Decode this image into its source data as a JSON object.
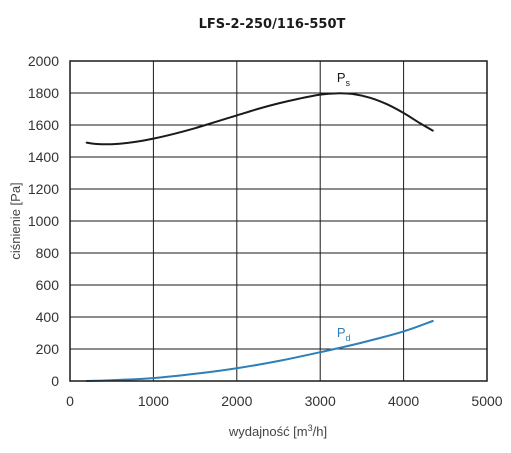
{
  "chart_data": {
    "type": "line",
    "title": "LFS-2-250/116-550T",
    "xlabel": {
      "prefix": "wydajność [m",
      "sup": "3",
      "suffix": "/h]"
    },
    "ylabel": "ciśnienie [Pa]",
    "xlim": [
      0,
      5000
    ],
    "ylim": [
      0,
      2000
    ],
    "x_ticks": [
      0,
      1000,
      2000,
      3000,
      4000,
      5000
    ],
    "y_ticks": [
      0,
      200,
      400,
      600,
      800,
      1000,
      1200,
      1400,
      1600,
      1800,
      2000
    ],
    "grid": true,
    "series": [
      {
        "label_main": "P",
        "label_sub": "s",
        "color": "#1a1a1a",
        "x": [
          200,
          300,
          500,
          750,
          1000,
          1250,
          1500,
          1750,
          2000,
          2250,
          2500,
          2750,
          3000,
          3200,
          3400,
          3600,
          3800,
          4000,
          4200,
          4350
        ],
        "y": [
          1490,
          1482,
          1480,
          1492,
          1515,
          1545,
          1580,
          1620,
          1660,
          1700,
          1735,
          1765,
          1790,
          1798,
          1793,
          1770,
          1730,
          1675,
          1610,
          1565
        ]
      },
      {
        "label_main": "P",
        "label_sub": "d",
        "color": "#2f7fb8",
        "x": [
          200,
          500,
          1000,
          1500,
          2000,
          2500,
          3000,
          3500,
          4000,
          4350
        ],
        "y": [
          0,
          5,
          18,
          45,
          80,
          125,
          180,
          240,
          310,
          375
        ]
      }
    ]
  }
}
